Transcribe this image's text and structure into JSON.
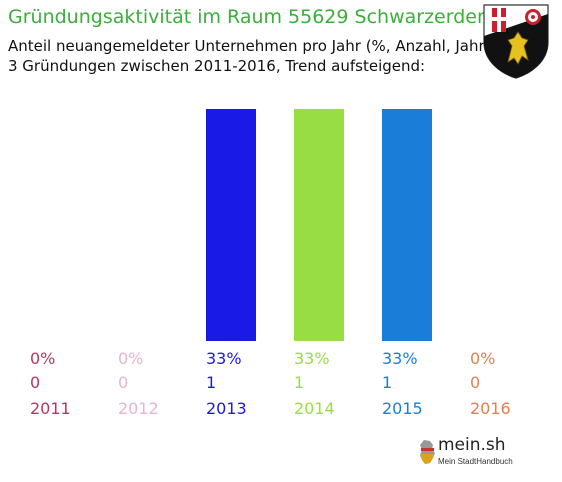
{
  "header": {
    "title": "Gründungsaktivität im Raum 55629 Schwarzerden",
    "subtitle_line1": "Anteil neuangemeldeter Unternehmen pro Jahr (%, Anzahl, Jahr)",
    "subtitle_line2": "3 Gründungen zwischen 2011-2016, Trend aufsteigend:"
  },
  "crest_icon": "rhineland-palatinate-coat-of-arms-icon",
  "brand": {
    "name": "mein.sh",
    "tagline": "Mein StadtHandbuch",
    "icon": "germany-map-icon"
  },
  "chart_data": {
    "type": "bar",
    "categories": [
      "2011",
      "2012",
      "2013",
      "2014",
      "2015",
      "2016"
    ],
    "percent_labels": [
      "0%",
      "0%",
      "33%",
      "33%",
      "33%",
      "0%"
    ],
    "count_labels": [
      "0",
      "0",
      "1",
      "1",
      "1",
      "0"
    ],
    "values": [
      0,
      0,
      33,
      33,
      33,
      0
    ],
    "colors": [
      "#b03a5e",
      "#e8b4cc",
      "#1a1ae6",
      "#99dd44",
      "#1a7ed8",
      "#e08050"
    ],
    "title": "Gründungsaktivität im Raum 55629 Schwarzerden",
    "ylim": [
      0,
      33
    ],
    "grid": false
  }
}
